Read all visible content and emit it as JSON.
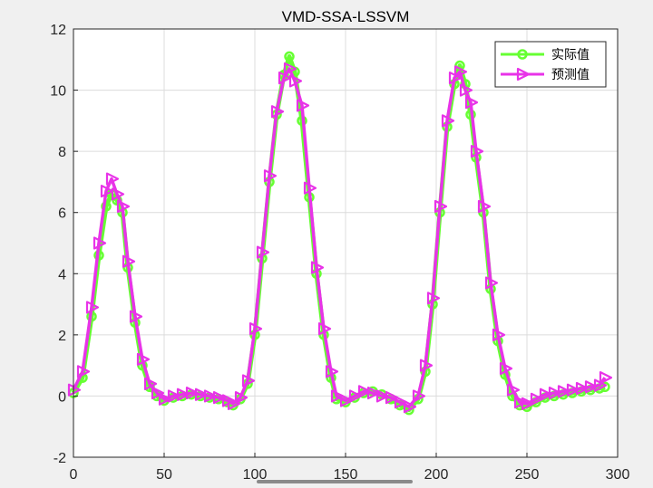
{
  "chart_data": {
    "type": "line",
    "title": "VMD-SSA-LSSVM",
    "xlabel": "",
    "ylabel": "",
    "xlim": [
      0,
      300
    ],
    "ylim": [
      -2,
      12
    ],
    "x_ticks": [
      "0",
      "50",
      "100",
      "150",
      "200",
      "250",
      "300"
    ],
    "y_ticks": [
      "-2",
      "0",
      "2",
      "4",
      "6",
      "8",
      "10",
      "12"
    ],
    "grid": true,
    "legend_position": "top-right",
    "series": [
      {
        "name": "实际值",
        "color": "#66ff33",
        "marker": "circle",
        "points": [
          [
            0,
            0.1
          ],
          [
            5,
            0.6
          ],
          [
            10,
            2.6
          ],
          [
            14,
            4.6
          ],
          [
            18,
            6.2
          ],
          [
            21,
            6.6
          ],
          [
            24,
            6.4
          ],
          [
            27,
            6.0
          ],
          [
            30,
            4.2
          ],
          [
            34,
            2.4
          ],
          [
            38,
            1.0
          ],
          [
            42,
            0.3
          ],
          [
            46,
            0.0
          ],
          [
            50,
            -0.15
          ],
          [
            55,
            -0.05
          ],
          [
            60,
            0.0
          ],
          [
            65,
            0.05
          ],
          [
            70,
            0.0
          ],
          [
            75,
            -0.05
          ],
          [
            80,
            -0.1
          ],
          [
            85,
            -0.2
          ],
          [
            88,
            -0.3
          ],
          [
            92,
            -0.1
          ],
          [
            96,
            0.4
          ],
          [
            100,
            2.0
          ],
          [
            104,
            4.5
          ],
          [
            108,
            7.0
          ],
          [
            112,
            9.2
          ],
          [
            116,
            10.5
          ],
          [
            119,
            11.1
          ],
          [
            122,
            10.6
          ],
          [
            126,
            9.0
          ],
          [
            130,
            6.5
          ],
          [
            134,
            4.0
          ],
          [
            138,
            2.0
          ],
          [
            142,
            0.6
          ],
          [
            145,
            -0.1
          ],
          [
            150,
            -0.2
          ],
          [
            155,
            -0.05
          ],
          [
            160,
            0.1
          ],
          [
            165,
            0.15
          ],
          [
            170,
            0.05
          ],
          [
            175,
            -0.1
          ],
          [
            180,
            -0.3
          ],
          [
            185,
            -0.45
          ],
          [
            190,
            -0.1
          ],
          [
            194,
            0.8
          ],
          [
            198,
            3.0
          ],
          [
            202,
            6.0
          ],
          [
            206,
            8.8
          ],
          [
            210,
            10.2
          ],
          [
            213,
            10.8
          ],
          [
            216,
            10.2
          ],
          [
            219,
            9.2
          ],
          [
            222,
            7.8
          ],
          [
            226,
            6.0
          ],
          [
            230,
            3.5
          ],
          [
            234,
            1.8
          ],
          [
            238,
            0.7
          ],
          [
            242,
            0.0
          ],
          [
            246,
            -0.3
          ],
          [
            250,
            -0.35
          ],
          [
            255,
            -0.2
          ],
          [
            260,
            -0.05
          ],
          [
            265,
            0.0
          ],
          [
            270,
            0.05
          ],
          [
            275,
            0.1
          ],
          [
            280,
            0.15
          ],
          [
            285,
            0.2
          ],
          [
            290,
            0.25
          ],
          [
            293,
            0.3
          ]
        ]
      },
      {
        "name": "预测值",
        "color": "#e833e8",
        "marker": "triangle-right",
        "points": [
          [
            0,
            0.2
          ],
          [
            5,
            0.8
          ],
          [
            10,
            2.9
          ],
          [
            14,
            5.0
          ],
          [
            18,
            6.7
          ],
          [
            21,
            7.1
          ],
          [
            24,
            6.6
          ],
          [
            27,
            6.2
          ],
          [
            30,
            4.4
          ],
          [
            34,
            2.6
          ],
          [
            38,
            1.2
          ],
          [
            42,
            0.4
          ],
          [
            46,
            0.1
          ],
          [
            50,
            -0.1
          ],
          [
            55,
            0.0
          ],
          [
            60,
            0.05
          ],
          [
            65,
            0.1
          ],
          [
            70,
            0.05
          ],
          [
            75,
            0.0
          ],
          [
            80,
            -0.05
          ],
          [
            85,
            -0.15
          ],
          [
            88,
            -0.25
          ],
          [
            92,
            -0.05
          ],
          [
            96,
            0.5
          ],
          [
            100,
            2.2
          ],
          [
            104,
            4.7
          ],
          [
            108,
            7.2
          ],
          [
            112,
            9.3
          ],
          [
            116,
            10.4
          ],
          [
            119,
            10.7
          ],
          [
            122,
            10.3
          ],
          [
            126,
            9.5
          ],
          [
            130,
            6.8
          ],
          [
            134,
            4.2
          ],
          [
            138,
            2.2
          ],
          [
            142,
            0.8
          ],
          [
            145,
            0.0
          ],
          [
            150,
            -0.15
          ],
          [
            155,
            0.0
          ],
          [
            160,
            0.15
          ],
          [
            165,
            0.1
          ],
          [
            170,
            0.0
          ],
          [
            175,
            -0.05
          ],
          [
            180,
            -0.2
          ],
          [
            185,
            -0.35
          ],
          [
            190,
            0.0
          ],
          [
            194,
            1.0
          ],
          [
            198,
            3.2
          ],
          [
            202,
            6.2
          ],
          [
            206,
            9.0
          ],
          [
            210,
            10.4
          ],
          [
            213,
            10.6
          ],
          [
            216,
            10.0
          ],
          [
            219,
            9.6
          ],
          [
            222,
            8.0
          ],
          [
            226,
            6.2
          ],
          [
            230,
            3.7
          ],
          [
            234,
            2.0
          ],
          [
            238,
            0.9
          ],
          [
            242,
            0.2
          ],
          [
            246,
            -0.2
          ],
          [
            250,
            -0.25
          ],
          [
            255,
            -0.1
          ],
          [
            260,
            0.05
          ],
          [
            265,
            0.1
          ],
          [
            270,
            0.15
          ],
          [
            275,
            0.2
          ],
          [
            280,
            0.25
          ],
          [
            285,
            0.3
          ],
          [
            290,
            0.35
          ],
          [
            293,
            0.6
          ]
        ]
      }
    ]
  }
}
